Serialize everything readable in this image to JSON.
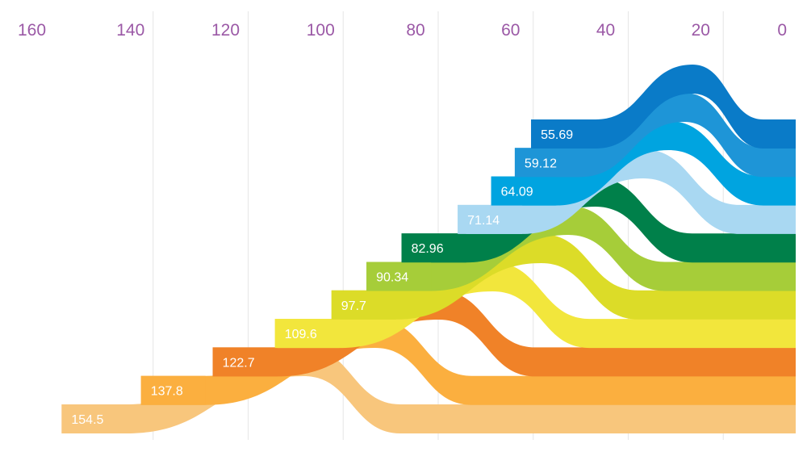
{
  "chart_data": {
    "type": "bar",
    "title": "",
    "xlabel": "",
    "ylabel": "",
    "xlim": [
      160,
      0
    ],
    "x_ticks": [
      "160",
      "140",
      "120",
      "100",
      "80",
      "60",
      "40",
      "20",
      "0"
    ],
    "grid": "vertical",
    "sorted_descending_per_row": true,
    "series": [
      {
        "values": [
          55.69
        ],
        "color": "#0a7bc8"
      },
      {
        "values": [
          59.12
        ],
        "color": "#1e95d7"
      },
      {
        "values": [
          64.09
        ],
        "color": "#00a4e0"
      },
      {
        "values": [
          71.14
        ],
        "color": "#a9d8f2"
      },
      {
        "values": [
          82.96
        ],
        "color": "#00804a"
      },
      {
        "values": [
          90.34
        ],
        "color": "#a6cd39"
      },
      {
        "values": [
          97.7
        ],
        "color": "#dcdc28"
      },
      {
        "values": [
          109.6
        ],
        "color": "#f2e63c"
      },
      {
        "values": [
          122.7
        ],
        "color": "#f08228"
      },
      {
        "values": [
          137.8
        ],
        "color": "#fbaf3f"
      },
      {
        "values": [
          154.5
        ],
        "color": "#f8c67c"
      }
    ],
    "value_labels": [
      "55.69",
      "59.12",
      "64.09",
      "71.14",
      "82.96",
      "90.34",
      "97.7",
      "109.6",
      "122.7",
      "137.8",
      "154.5"
    ],
    "tick_color": "#9b59a6",
    "grid_color": "#e6e6e6"
  }
}
